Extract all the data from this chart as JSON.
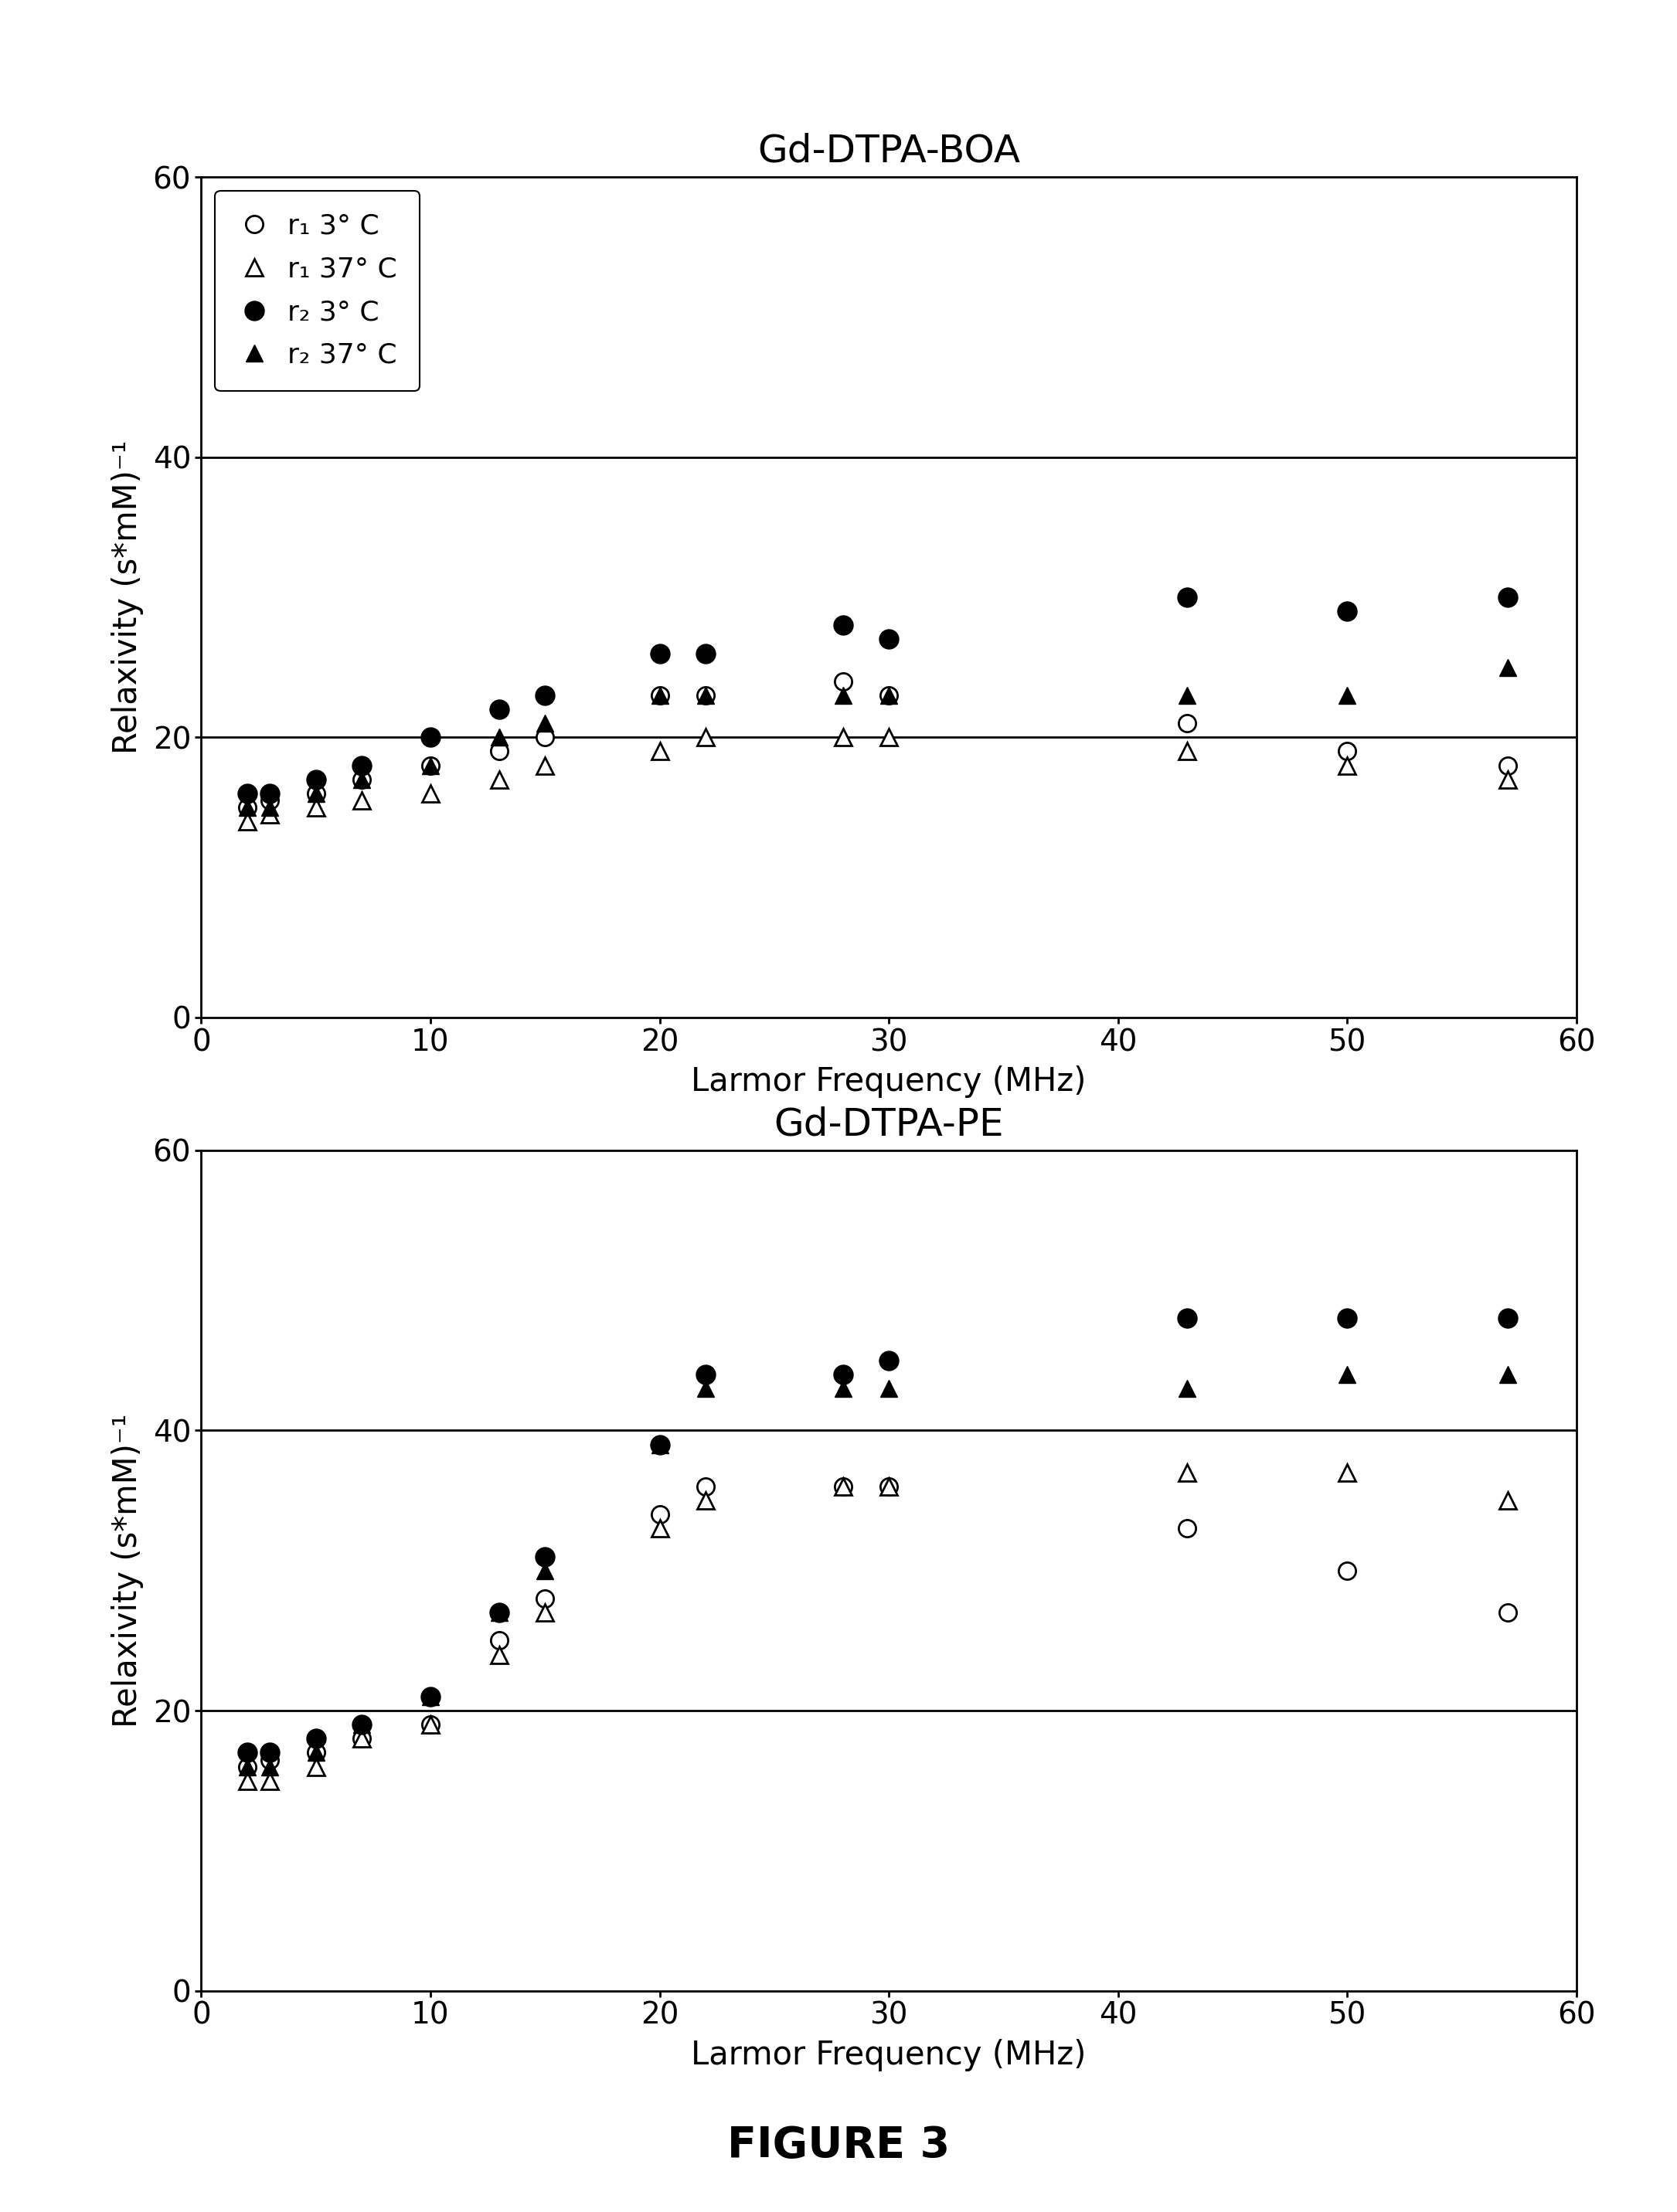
{
  "top_title": "Gd-DTPA-BOA",
  "bottom_title": "Gd-DTPA-PE",
  "figure_label": "FIGURE 3",
  "xlabel": "Larmor Frequency (MHz)",
  "ylabel": "Relaxivity (s*mM)⁻¹",
  "xlim": [
    0,
    60
  ],
  "ylim": [
    0,
    60
  ],
  "xticks": [
    0,
    10,
    20,
    30,
    40,
    50,
    60
  ],
  "yticks": [
    0,
    20,
    40,
    60
  ],
  "top_r1_3C_x": [
    2,
    3,
    5,
    7,
    10,
    13,
    15,
    20,
    22,
    28,
    30,
    43,
    50,
    57
  ],
  "top_r1_3C_y": [
    15,
    15.5,
    16,
    17,
    18,
    19,
    20,
    23,
    23,
    24,
    23,
    21,
    19,
    18
  ],
  "top_r1_37C_x": [
    2,
    3,
    5,
    7,
    10,
    13,
    15,
    20,
    22,
    28,
    30,
    43,
    50,
    57
  ],
  "top_r1_37C_y": [
    14,
    14.5,
    15,
    15.5,
    16,
    17,
    18,
    19,
    20,
    20,
    20,
    19,
    18,
    17
  ],
  "top_r2_3C_x": [
    2,
    3,
    5,
    7,
    10,
    13,
    15,
    20,
    22,
    28,
    30,
    43,
    50,
    57
  ],
  "top_r2_3C_y": [
    16,
    16,
    17,
    18,
    20,
    22,
    23,
    26,
    26,
    28,
    27,
    30,
    29,
    30
  ],
  "top_r2_37C_x": [
    2,
    3,
    5,
    7,
    10,
    13,
    15,
    20,
    22,
    28,
    30,
    43,
    50,
    57
  ],
  "top_r2_37C_y": [
    15,
    15,
    16,
    17,
    18,
    20,
    21,
    23,
    23,
    23,
    23,
    23,
    23,
    25
  ],
  "bot_r1_3C_x": [
    2,
    3,
    5,
    7,
    10,
    13,
    15,
    20,
    22,
    28,
    30,
    43,
    50,
    57
  ],
  "bot_r1_3C_y": [
    16,
    16.5,
    17,
    18,
    19,
    25,
    28,
    34,
    36,
    36,
    36,
    33,
    30,
    27
  ],
  "bot_r1_37C_x": [
    2,
    3,
    5,
    7,
    10,
    13,
    15,
    20,
    22,
    28,
    30,
    43,
    50,
    57
  ],
  "bot_r1_37C_y": [
    15,
    15,
    16,
    18,
    19,
    24,
    27,
    33,
    35,
    36,
    36,
    37,
    37,
    35
  ],
  "bot_r2_3C_x": [
    2,
    3,
    5,
    7,
    10,
    13,
    15,
    20,
    22,
    28,
    30,
    43,
    50,
    57
  ],
  "bot_r2_3C_y": [
    17,
    17,
    18,
    19,
    21,
    27,
    31,
    39,
    44,
    44,
    45,
    48,
    48,
    48
  ],
  "bot_r2_37C_x": [
    2,
    3,
    5,
    7,
    10,
    13,
    15,
    20,
    22,
    28,
    30,
    43,
    50,
    57
  ],
  "bot_r2_37C_y": [
    16,
    16,
    17,
    19,
    21,
    27,
    30,
    39,
    43,
    43,
    43,
    43,
    44,
    44
  ],
  "hline_y": 20,
  "hline_y2": 40,
  "legend_labels": [
    "r₁ 3° C",
    "r₁ 37° C",
    "r₂ 3° C",
    "r₂ 37° C"
  ],
  "title_fontsize": 36,
  "label_fontsize": 30,
  "tick_fontsize": 28,
  "legend_fontsize": 26,
  "fig_label_fontsize": 40,
  "marker_size": 16,
  "linewidth_hline": 2.0,
  "spine_linewidth": 2.0
}
